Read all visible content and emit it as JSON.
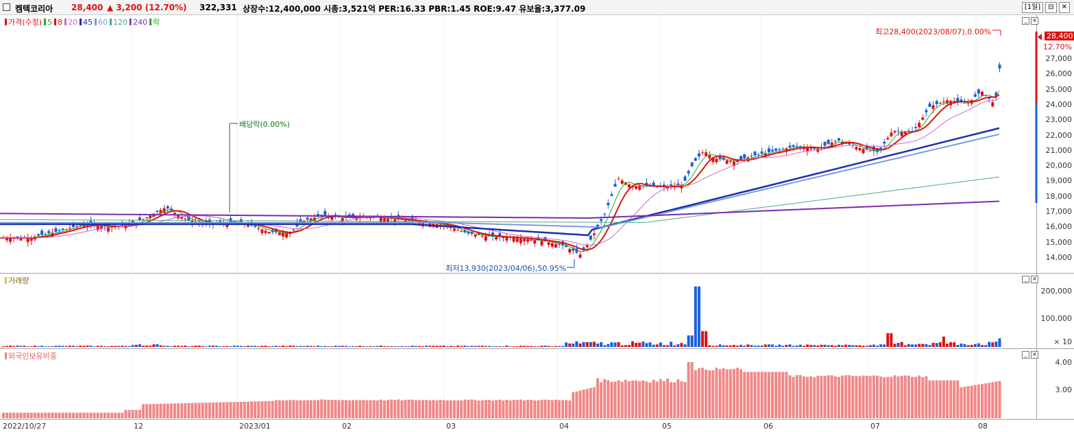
{
  "header": {
    "name": "켐텍코리아",
    "price": "28,400",
    "change_arrow": "▲",
    "change": "3,200",
    "change_pct": "(12.70%)",
    "volume": "322,331",
    "stats": "상장수:12,400,000 시총:3,521억 PER:16.33 PBR:1.45 ROE:9.47 유보율:3,377.09",
    "period_button": "[1일]",
    "restore_icon": "restore-icon",
    "close_icon": "close-icon"
  },
  "price_panel": {
    "legend": [
      {
        "label": "가격(수정)",
        "color": "#e01010"
      },
      {
        "label": "5",
        "color": "#22aa22"
      },
      {
        "label": "8",
        "color": "#e01010"
      },
      {
        "label": "20",
        "color": "#cc66cc"
      },
      {
        "label": "45",
        "color": "#1a2fb0"
      },
      {
        "label": "60",
        "color": "#7a9ad8"
      },
      {
        "label": "120",
        "color": "#4aa88a"
      },
      {
        "label": "240",
        "color": "#7a2ab0"
      },
      {
        "label": "락",
        "color": "#22aa22"
      }
    ],
    "high_annotation": "최고28,400(2023/08/07),0.00%",
    "low_annotation": "최저13,930(2023/04/06),50.95%",
    "dividend_annotation": "배당락(0.00%)",
    "current_price_tag": "28,400",
    "current_pct_tag": "12.70%",
    "y_labels": [
      "27,000",
      "26,000",
      "25,000",
      "24,000",
      "23,000",
      "22,000",
      "21,000",
      "20,000",
      "19,000",
      "18,000",
      "17,000",
      "16,000",
      "15,000",
      "14,000"
    ]
  },
  "volume_panel": {
    "legend": "거래량",
    "y_labels": [
      "200,000",
      "100,000"
    ],
    "multiplier": "× 10"
  },
  "foreign_panel": {
    "legend": "외국인보유비중",
    "y_labels": [
      "4.00",
      "3.00"
    ]
  },
  "x_labels": [
    "2022/10/27",
    "12",
    "2023/01",
    "02",
    "03",
    "04",
    "05",
    "06",
    "07",
    "08"
  ],
  "chart_data": {
    "type": "candlestick",
    "x_range": [
      "2022/10/27",
      "2023/08/07"
    ],
    "ylim": [
      13500,
      28500
    ],
    "key_points": [
      {
        "date": "2023/04/06",
        "value": 13930,
        "label": "최저"
      },
      {
        "date": "2023/08/07",
        "value": 28400,
        "label": "최고"
      }
    ],
    "moving_averages": [
      "5",
      "8",
      "20",
      "45",
      "60",
      "120",
      "240"
    ]
  }
}
